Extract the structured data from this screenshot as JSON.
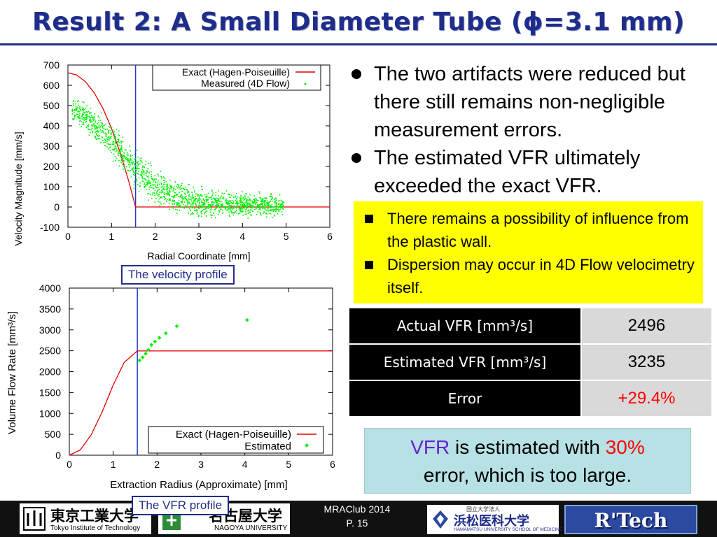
{
  "slide": {
    "title": "Result 2: A Small Diameter Tube (ϕ=3.1 mm)"
  },
  "captions": {
    "velocity": "The velocity profile",
    "vfr": "The VFR profile"
  },
  "bullets": [
    "The two artifacts were reduced but there still remains non-negligible measurement errors.",
    "The estimated VFR ultimately exceeded the exact VFR."
  ],
  "sub_bullets": [
    "There remains a possibility of influence from the plastic wall.",
    "Dispersion may occur in 4D Flow velocimetry itself."
  ],
  "table": {
    "rows": [
      {
        "label": "Actual VFR [mm³/s]",
        "value": "2496"
      },
      {
        "label": "Estimated VFR [mm³/s]",
        "value": "3235"
      },
      {
        "label": "Error",
        "value": "+29.4%"
      }
    ],
    "error_color": "#ff0000"
  },
  "summary": {
    "vfr": "VFR",
    "text1": " is estimated with ",
    "pct": "30%",
    "text2": "error, which is too large."
  },
  "footer": {
    "logo1_jp": "東京工業大学",
    "logo1_en": "Tokyo Institute of Technology",
    "logo2_jp": "名古屋大学",
    "logo2_en": "NAGOYA UNIVERSITY",
    "event": "MRAClub 2014",
    "page": "P. 15",
    "logo3_small": "国立大学法人",
    "logo3_jp": "浜松医科大学",
    "logo3_en": "HAMAMATSU UNIVERSITY SCHOOL OF MEDICINE",
    "logo4": "R'Tech"
  },
  "chart_data": [
    {
      "type": "line",
      "xlabel": "Radial Coordinate [mm]",
      "ylabel": "Velocity Magnitude [mm/s]",
      "xlim": [
        0,
        6
      ],
      "ylim": [
        -100,
        700
      ],
      "xticks": [
        "0",
        "1",
        "2",
        "3",
        "4",
        "5",
        "6"
      ],
      "yticks": [
        "-100",
        "0",
        "100",
        "200",
        "300",
        "400",
        "500",
        "600",
        "700"
      ],
      "legend_position": "top-right",
      "wall_radius": 1.55,
      "series": [
        {
          "name": "Exact (Hagen-Poiseuille)",
          "style": "line",
          "color": "#e00000",
          "x": [
            0,
            0.2,
            0.4,
            0.6,
            0.8,
            1.0,
            1.2,
            1.4,
            1.55,
            6.0
          ],
          "y": [
            662,
            651,
            618,
            564,
            487,
            387,
            266,
            122,
            0,
            0
          ]
        },
        {
          "name": "Measured (4D Flow)",
          "style": "scatter-band",
          "color": "#00ee00",
          "x": [
            0.1,
            0.5,
            1.0,
            1.5,
            2.0,
            2.5,
            3.0,
            3.5,
            4.0,
            4.5,
            4.95
          ],
          "y_center": [
            480,
            430,
            330,
            190,
            100,
            50,
            20,
            15,
            10,
            10,
            10
          ],
          "y_spread": [
            40,
            50,
            60,
            70,
            60,
            55,
            50,
            45,
            45,
            40,
            35
          ]
        }
      ]
    },
    {
      "type": "line",
      "xlabel": "Extraction Radius (Approximate) [mm]",
      "ylabel": "Volume Flow Rate [mm³/s]",
      "xlim": [
        0,
        6
      ],
      "ylim": [
        0,
        4000
      ],
      "xticks": [
        "0",
        "1",
        "2",
        "3",
        "4",
        "5",
        "6"
      ],
      "yticks": [
        "0",
        "500",
        "1000",
        "1500",
        "2000",
        "2500",
        "3000",
        "3500",
        "4000"
      ],
      "legend_position": "bottom-right",
      "wall_radius": 1.55,
      "series": [
        {
          "name": "Exact (Hagen-Poiseuille)",
          "style": "line",
          "color": "#e00000",
          "x": [
            0,
            0.25,
            0.5,
            0.75,
            1.0,
            1.25,
            1.55,
            6.0
          ],
          "y": [
            0,
            128,
            490,
            1040,
            1680,
            2220,
            2496,
            2496
          ]
        },
        {
          "name": "Estimated",
          "style": "scatter",
          "color": "#00ee00",
          "x": [
            1.6,
            1.67,
            1.74,
            1.8,
            1.87,
            1.95,
            2.05,
            2.2,
            2.45,
            4.05
          ],
          "y": [
            2270,
            2340,
            2430,
            2520,
            2640,
            2720,
            2810,
            2920,
            3090,
            3235
          ]
        }
      ]
    }
  ]
}
